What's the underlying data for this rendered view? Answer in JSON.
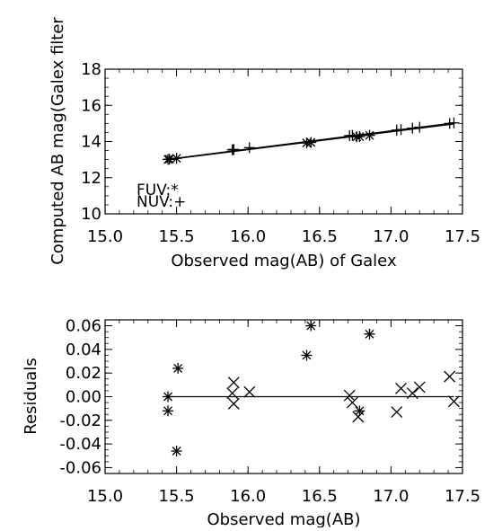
{
  "chart_data": [
    {
      "type": "scatter",
      "xlabel": "Observed mag(AB) of Galex",
      "ylabel": "Computed AB mag(Galex filter",
      "xlim": [
        15.0,
        17.5
      ],
      "ylim": [
        10,
        18
      ],
      "xticks": [
        "15.0",
        "15.5",
        "16.0",
        "16.5",
        "17.0",
        "17.5"
      ],
      "yticks": [
        "10",
        "12",
        "14",
        "16",
        "18"
      ],
      "legend": [
        {
          "label": "FUV:*",
          "marker": "asterisk"
        },
        {
          "label": "NUV:+",
          "marker": "plus"
        }
      ],
      "series": [
        {
          "name": "FUV",
          "marker": "asterisk",
          "x": [
            15.44,
            15.45,
            15.5,
            16.41,
            16.44,
            16.76,
            16.78,
            16.85
          ],
          "y": [
            13.01,
            13.02,
            13.07,
            13.92,
            13.95,
            14.26,
            14.27,
            14.34
          ]
        },
        {
          "name": "NUV",
          "marker": "plus",
          "x": [
            15.89,
            15.9,
            15.9,
            16.01,
            16.71,
            16.73,
            17.04,
            17.07,
            17.15,
            17.2,
            17.41,
            17.44
          ],
          "y": [
            13.54,
            13.55,
            13.56,
            13.66,
            14.32,
            14.34,
            14.63,
            14.66,
            14.74,
            14.79,
            15.0,
            15.03
          ]
        }
      ],
      "fit_lines": [
        {
          "x": [
            15.44,
            17.44
          ],
          "y": [
            13.02,
            15.03
          ]
        },
        {
          "x": [
            15.44,
            17.44
          ],
          "y": [
            13.0,
            14.97
          ]
        }
      ]
    },
    {
      "type": "scatter",
      "xlabel": "Observed mag(AB)",
      "ylabel": "Residuals",
      "xlim": [
        15.0,
        17.5
      ],
      "ylim": [
        -0.065,
        0.065
      ],
      "xticks": [
        "15.0",
        "15.5",
        "16.0",
        "16.5",
        "17.0",
        "17.5"
      ],
      "yticks": [
        "0.06",
        "0.04",
        "0.02",
        "0.00",
        "-0.02",
        "-0.04",
        "-0.06"
      ],
      "ytick_values": [
        0.06,
        0.04,
        0.02,
        0.0,
        -0.02,
        -0.04,
        -0.06
      ],
      "series": [
        {
          "name": "FUV",
          "marker": "asterisk",
          "x": [
            15.44,
            15.44,
            15.5,
            15.51,
            16.41,
            16.44,
            16.78,
            16.85
          ],
          "y": [
            0.0,
            -0.012,
            -0.046,
            0.024,
            0.035,
            0.06,
            -0.012,
            0.053
          ]
        },
        {
          "name": "NUV",
          "marker": "cross",
          "x": [
            15.89,
            15.9,
            15.9,
            16.01,
            16.71,
            16.73,
            16.77,
            17.04,
            17.07,
            17.15,
            17.2,
            17.41,
            17.44
          ],
          "y": [
            0.003,
            0.012,
            -0.006,
            0.004,
            0.001,
            -0.005,
            -0.017,
            -0.013,
            0.007,
            0.003,
            0.008,
            0.017,
            -0.004
          ]
        }
      ],
      "zero_line": {
        "x": [
          15.44,
          17.44
        ],
        "y": [
          0.0,
          0.0
        ]
      }
    }
  ]
}
